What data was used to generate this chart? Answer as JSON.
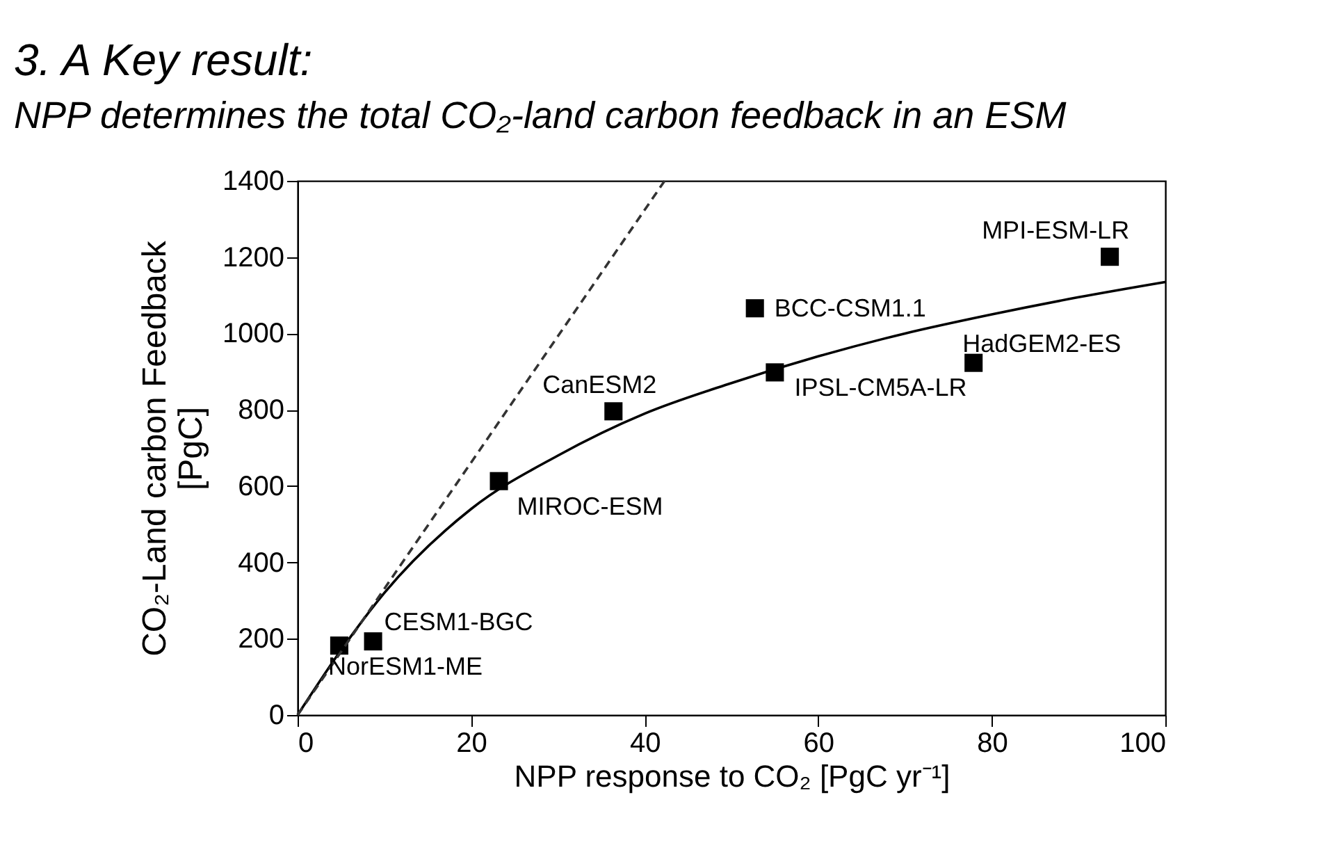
{
  "chart_data": {
    "type": "scatter",
    "title": "3. A Key result:",
    "subtitle": "NPP determines the total CO₂-land carbon feedback in an ESM",
    "xlabel": "NPP response to CO₂ [PgC yr⁻¹]",
    "ylabel": "CO₂-Land carbon Feedback\n[PgC]",
    "xlim": [
      0,
      100
    ],
    "xticks": [
      0,
      20,
      40,
      60,
      80,
      100
    ],
    "ylim": [
      0,
      1400
    ],
    "yticks": [
      0,
      200,
      400,
      600,
      800,
      1000,
      1200,
      1400
    ],
    "grid": false,
    "series": [
      {
        "color": "#000000",
        "marker": "square",
        "x": [
          4.8,
          8.7,
          23.2,
          36.4,
          52.7,
          55,
          77.9,
          93.6
        ],
        "values": [
          182,
          193,
          613,
          796,
          1066,
          898,
          923,
          1201
        ]
      },
      {
        "type": "line",
        "color": "#000000",
        "line_style": "solid",
        "x": [
          0,
          5,
          10,
          20,
          30,
          40,
          50,
          60,
          70,
          80,
          90,
          100
        ],
        "values": [
          0,
          170,
          320,
          540,
          680,
          790,
          870,
          940,
          1000,
          1050,
          1095,
          1135
        ]
      },
      {
        "type": "line",
        "color": "#333333",
        "line_style": "dashed",
        "x": [
          0,
          42.3
        ],
        "values": [
          0,
          1400
        ]
      }
    ],
    "annotations": [
      {
        "text": "NorESM1-ME",
        "x": 4.8,
        "y": 182
      },
      {
        "text": "CESM1-BGC",
        "x": 8.7,
        "y": 193
      },
      {
        "text": "MIROC-ESM",
        "x": 23.2,
        "y": 613
      },
      {
        "text": "CanESM2",
        "x": 36.4,
        "y": 796
      },
      {
        "text": "BCC-CSM1.1",
        "x": 52.7,
        "y": 1066
      },
      {
        "text": "IPSL-CM5A-LR",
        "x": 55,
        "y": 898
      },
      {
        "text": "HadGEM2-ES",
        "x": 77.9,
        "y": 923
      },
      {
        "text": "MPI-ESM-LR",
        "x": 93.6,
        "y": 1201
      }
    ]
  }
}
